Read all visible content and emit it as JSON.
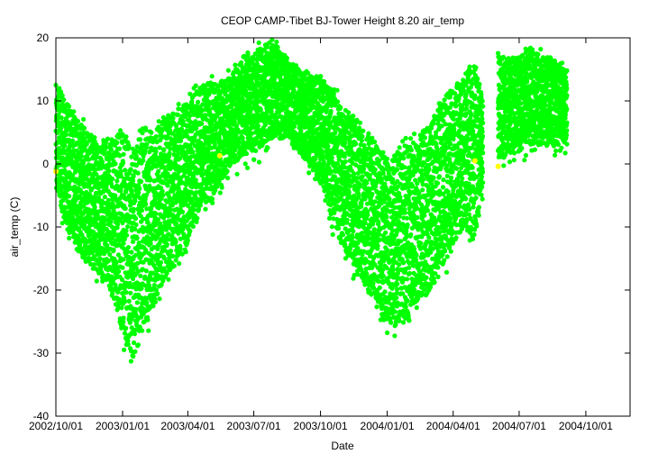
{
  "chart_data": {
    "type": "scatter",
    "title": "CEOP CAMP-Tibet BJ-Tower Height 8.20 air_temp",
    "xlabel": "Date",
    "ylabel": "air_temp (C)",
    "xlim": [
      "2002-10-01",
      "2004-12-01"
    ],
    "ylim": [
      -40,
      20
    ],
    "xticks": [
      "2002/10/01",
      "2003/01/01",
      "2003/04/01",
      "2003/07/01",
      "2003/10/01",
      "2004/01/01",
      "2004/04/01",
      "2004/07/01",
      "2004/10/01"
    ],
    "xtick_labels": [
      "2002/10/01",
      "2003/01/01",
      "2003/04/01",
      "2003/07/01",
      "2003/10/01",
      "2004/01/01",
      "2004/04/01",
      "2004/07/01",
      "2004/10/01"
    ],
    "yticks": [
      -40,
      -30,
      -20,
      -10,
      0,
      10,
      20
    ],
    "grid": false,
    "legend": "none",
    "colors": {
      "main": "#00ff00",
      "flagged": "#ffff00"
    },
    "envelope": {
      "name": "air_temp range",
      "dates": [
        "2002-10-01",
        "2002-10-15",
        "2002-11-01",
        "2002-11-15",
        "2002-12-01",
        "2002-12-15",
        "2003-01-01",
        "2003-01-15",
        "2003-02-01",
        "2003-02-15",
        "2003-03-01",
        "2003-03-15",
        "2003-04-01",
        "2003-04-15",
        "2003-05-01",
        "2003-05-15",
        "2003-06-01",
        "2003-06-15",
        "2003-07-01",
        "2003-07-15",
        "2003-08-01",
        "2003-08-15",
        "2003-09-01",
        "2003-09-15",
        "2003-10-01",
        "2003-10-15",
        "2003-11-01",
        "2003-11-15",
        "2003-12-01",
        "2003-12-15",
        "2004-01-01",
        "2004-01-15",
        "2004-02-01",
        "2004-02-15",
        "2004-03-01",
        "2004-03-15",
        "2004-04-01",
        "2004-04-15",
        "2004-05-01",
        "2004-05-15",
        "2004-06-01",
        "2004-06-15",
        "2004-07-01",
        "2004-07-15",
        "2004-08-01",
        "2004-08-15",
        "2004-09-01"
      ],
      "max": [
        13,
        10,
        7,
        5,
        3,
        4,
        5,
        2,
        6,
        5,
        8,
        8,
        10,
        12,
        13,
        13,
        14,
        17,
        18,
        19,
        19,
        17,
        15,
        14,
        14,
        12,
        9,
        8,
        5,
        4,
        1,
        2,
        4,
        5,
        6,
        10,
        12,
        14,
        16,
        9,
        null,
        17,
        17,
        19,
        17,
        17,
        15
      ],
      "min": [
        -4,
        -10,
        -14,
        -16,
        -18,
        -20,
        -27,
        -31,
        -26,
        -22,
        -18,
        -16,
        -13,
        -8,
        -6,
        -3,
        0,
        1,
        2,
        3,
        4,
        4,
        2,
        0,
        -3,
        -8,
        -13,
        -16,
        -19,
        -22,
        -25,
        -26,
        -25,
        -22,
        -20,
        -17,
        -13,
        -10,
        -12,
        -2,
        null,
        1,
        2,
        3,
        3,
        3,
        3
      ]
    },
    "flagged_points": [
      {
        "x": "2002-10-01",
        "y": -1.2
      },
      {
        "x": "2003-05-15",
        "y": 1.3
      },
      {
        "x": "2004-05-01",
        "y": 0.5
      },
      {
        "x": "2004-06-02",
        "y": -0.4
      }
    ]
  }
}
